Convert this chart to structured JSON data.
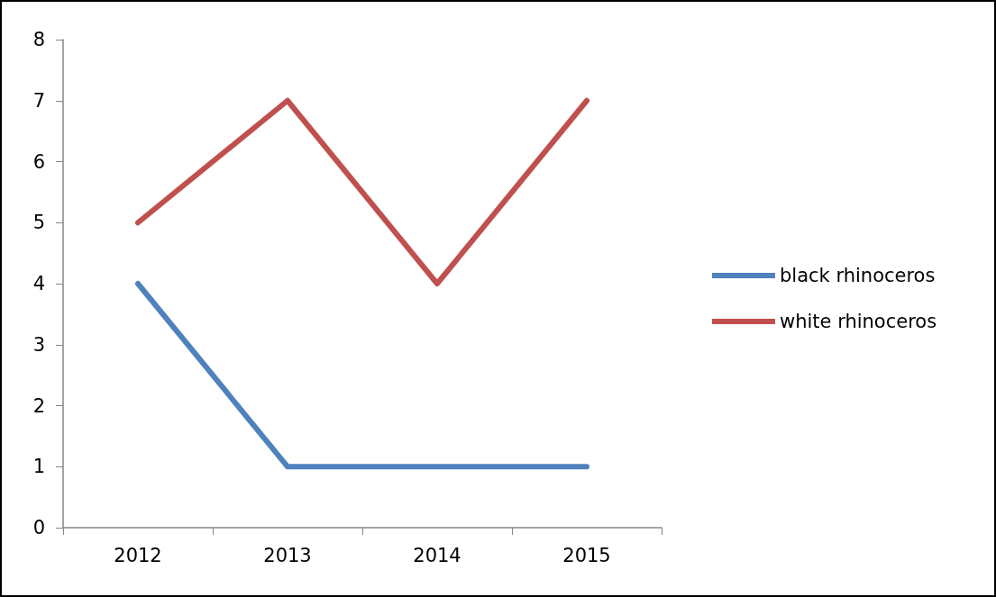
{
  "chart_data": {
    "type": "line",
    "categories": [
      "2012",
      "2013",
      "2014",
      "2015"
    ],
    "series": [
      {
        "name": "black rhinoceros",
        "color": "#4f81bd",
        "values": [
          4,
          1,
          1,
          1
        ]
      },
      {
        "name": "white rhinoceros",
        "color": "#c0504d",
        "values": [
          5,
          7,
          4,
          7
        ]
      }
    ],
    "ylim": [
      0,
      8
    ],
    "yticks": [
      0,
      1,
      2,
      3,
      4,
      5,
      6,
      7,
      8
    ],
    "grid": false,
    "legend": "right",
    "marker": "none",
    "line_style": "solid"
  }
}
